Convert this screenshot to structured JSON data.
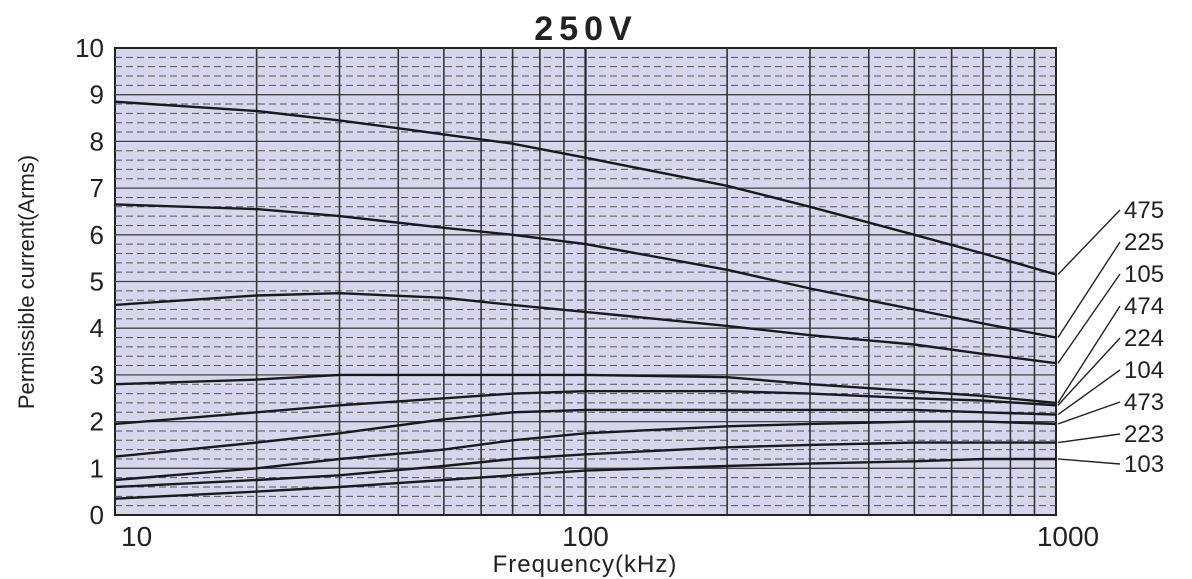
{
  "chart_data": {
    "type": "line",
    "title": "250V",
    "xlabel": "Frequency(kHz)",
    "ylabel": "Permissible current(Arms)",
    "x_scale": "log",
    "xlim": [
      10,
      1000
    ],
    "ylim": [
      0,
      10
    ],
    "x_ticks": [
      "10",
      "100",
      "1000"
    ],
    "y_ticks": [
      "0",
      "1",
      "2",
      "3",
      "4",
      "5",
      "6",
      "7",
      "8",
      "9",
      "10"
    ],
    "grid": true,
    "colors": {
      "plot_bg": "#d6d6ec",
      "line": "#1a1a1a",
      "grid": "#3a3a3a"
    },
    "series": [
      {
        "name": "475",
        "points": [
          [
            10,
            8.85
          ],
          [
            20,
            8.65
          ],
          [
            30,
            8.45
          ],
          [
            50,
            8.15
          ],
          [
            70,
            7.95
          ],
          [
            100,
            7.65
          ],
          [
            200,
            7.05
          ],
          [
            300,
            6.6
          ],
          [
            500,
            6.0
          ],
          [
            700,
            5.6
          ],
          [
            1000,
            5.15
          ]
        ]
      },
      {
        "name": "225",
        "points": [
          [
            10,
            6.65
          ],
          [
            20,
            6.55
          ],
          [
            30,
            6.4
          ],
          [
            50,
            6.15
          ],
          [
            70,
            6.0
          ],
          [
            100,
            5.8
          ],
          [
            200,
            5.25
          ],
          [
            300,
            4.85
          ],
          [
            500,
            4.4
          ],
          [
            700,
            4.1
          ],
          [
            1000,
            3.8
          ]
        ]
      },
      {
        "name": "105",
        "points": [
          [
            10,
            4.5
          ],
          [
            20,
            4.7
          ],
          [
            30,
            4.75
          ],
          [
            50,
            4.65
          ],
          [
            70,
            4.5
          ],
          [
            100,
            4.35
          ],
          [
            200,
            4.05
          ],
          [
            300,
            3.85
          ],
          [
            500,
            3.65
          ],
          [
            700,
            3.45
          ],
          [
            1000,
            3.25
          ]
        ]
      },
      {
        "name": "474",
        "points": [
          [
            10,
            2.8
          ],
          [
            20,
            2.9
          ],
          [
            30,
            3.0
          ],
          [
            50,
            3.0
          ],
          [
            70,
            3.0
          ],
          [
            100,
            3.0
          ],
          [
            200,
            2.95
          ],
          [
            300,
            2.8
          ],
          [
            500,
            2.65
          ],
          [
            700,
            2.55
          ],
          [
            1000,
            2.4
          ]
        ]
      },
      {
        "name": "224",
        "points": [
          [
            10,
            1.95
          ],
          [
            20,
            2.2
          ],
          [
            30,
            2.35
          ],
          [
            50,
            2.5
          ],
          [
            70,
            2.6
          ],
          [
            100,
            2.65
          ],
          [
            200,
            2.65
          ],
          [
            300,
            2.6
          ],
          [
            500,
            2.5
          ],
          [
            700,
            2.45
          ],
          [
            1000,
            2.35
          ]
        ]
      },
      {
        "name": "104",
        "points": [
          [
            10,
            1.25
          ],
          [
            20,
            1.55
          ],
          [
            30,
            1.75
          ],
          [
            50,
            2.05
          ],
          [
            70,
            2.2
          ],
          [
            100,
            2.25
          ],
          [
            200,
            2.25
          ],
          [
            300,
            2.25
          ],
          [
            500,
            2.25
          ],
          [
            700,
            2.2
          ],
          [
            1000,
            2.15
          ]
        ]
      },
      {
        "name": "473",
        "points": [
          [
            10,
            0.75
          ],
          [
            20,
            1.0
          ],
          [
            30,
            1.2
          ],
          [
            50,
            1.4
          ],
          [
            70,
            1.6
          ],
          [
            100,
            1.75
          ],
          [
            200,
            1.9
          ],
          [
            300,
            1.95
          ],
          [
            500,
            2.0
          ],
          [
            700,
            2.0
          ],
          [
            1000,
            1.95
          ]
        ]
      },
      {
        "name": "223",
        "points": [
          [
            10,
            0.6
          ],
          [
            20,
            0.75
          ],
          [
            30,
            0.85
          ],
          [
            50,
            1.05
          ],
          [
            70,
            1.2
          ],
          [
            100,
            1.3
          ],
          [
            200,
            1.45
          ],
          [
            300,
            1.5
          ],
          [
            500,
            1.55
          ],
          [
            700,
            1.55
          ],
          [
            1000,
            1.55
          ]
        ]
      },
      {
        "name": "103",
        "points": [
          [
            10,
            0.35
          ],
          [
            20,
            0.5
          ],
          [
            30,
            0.6
          ],
          [
            50,
            0.75
          ],
          [
            70,
            0.85
          ],
          [
            100,
            0.95
          ],
          [
            200,
            1.05
          ],
          [
            300,
            1.1
          ],
          [
            500,
            1.15
          ],
          [
            700,
            1.2
          ],
          [
            1000,
            1.2
          ]
        ]
      }
    ]
  }
}
